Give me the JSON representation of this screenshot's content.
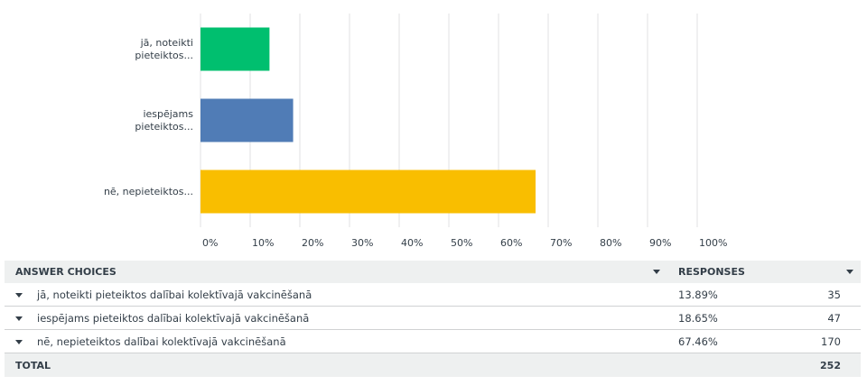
{
  "chart_data": {
    "type": "bar",
    "orientation": "horizontal",
    "categories": [
      "jā, noteikti pieteiktos...",
      "iespējams pieteiktos...",
      "nē, nepieteiktos..."
    ],
    "values": [
      13.89,
      18.65,
      67.46
    ],
    "colors": [
      "#00bf6f",
      "#507cb6",
      "#f9be00"
    ],
    "xlim": [
      0,
      100
    ],
    "xticks": [
      {
        "value": 0,
        "label": "0%"
      },
      {
        "value": 10,
        "label": "10%"
      },
      {
        "value": 20,
        "label": "20%"
      },
      {
        "value": 30,
        "label": "30%"
      },
      {
        "value": 40,
        "label": "40%"
      },
      {
        "value": 50,
        "label": "50%"
      },
      {
        "value": 60,
        "label": "60%"
      },
      {
        "value": 70,
        "label": "70%"
      },
      {
        "value": 80,
        "label": "80%"
      },
      {
        "value": 90,
        "label": "90%"
      },
      {
        "value": 100,
        "label": "100%"
      }
    ],
    "grid": true
  },
  "table": {
    "headers": [
      "ANSWER CHOICES",
      "RESPONSES"
    ],
    "rows": [
      [
        "jā, noteikti pieteiktos dalībai kolektīvajā vakcinēšanā",
        "13.89%",
        35
      ],
      [
        "iespējams pieteiktos dalībai kolektīvajā vakcinēšanā",
        "18.65%",
        47
      ],
      [
        "nē, nepieteiktos dalībai kolektīvajā vakcinēšanā",
        "67.46%",
        170
      ]
    ],
    "total": [
      "TOTAL",
      252
    ]
  }
}
